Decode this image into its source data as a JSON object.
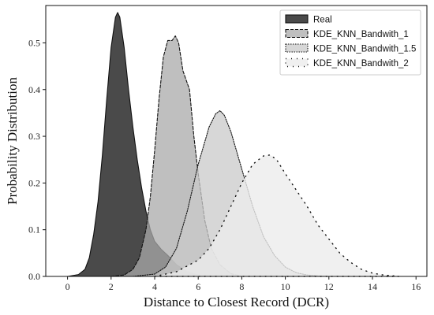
{
  "chart_data": {
    "type": "area",
    "xlabel": "Distance to Closest Record (DCR)",
    "ylabel": "Probability Distribution",
    "xlim": [
      -1.0,
      16.5
    ],
    "ylim": [
      0.0,
      0.58
    ],
    "xticks": [
      0,
      2,
      4,
      6,
      8,
      10,
      12,
      14,
      16
    ],
    "yticks": [
      0.0,
      0.1,
      0.2,
      0.3,
      0.4,
      0.5
    ],
    "grid": false,
    "legend_position": "top-right",
    "series": [
      {
        "name": "Real",
        "fill": "#4a4a4a",
        "fill_opacity": 1.0,
        "stroke": "#111111",
        "dash": "solid",
        "x": [
          0.0,
          0.5,
          0.8,
          1.0,
          1.2,
          1.4,
          1.6,
          1.8,
          2.0,
          2.2,
          2.3,
          2.4,
          2.6,
          2.8,
          3.0,
          3.2,
          3.4,
          3.6,
          3.8,
          4.0,
          4.3,
          4.6,
          5.0,
          5.5,
          6.0,
          6.5
        ],
        "y": [
          0.0,
          0.004,
          0.015,
          0.04,
          0.09,
          0.16,
          0.26,
          0.38,
          0.49,
          0.555,
          0.565,
          0.555,
          0.49,
          0.4,
          0.32,
          0.25,
          0.19,
          0.14,
          0.1,
          0.075,
          0.058,
          0.045,
          0.025,
          0.01,
          0.003,
          0.0
        ]
      },
      {
        "name": "KDE_KNN_Bandwith_1",
        "fill": "#aaaaaa",
        "fill_opacity": 0.75,
        "stroke": "#111111",
        "dash": "4,2",
        "x": [
          2.0,
          2.6,
          3.0,
          3.3,
          3.6,
          3.8,
          4.0,
          4.2,
          4.4,
          4.6,
          4.8,
          4.95,
          5.1,
          5.3,
          5.6,
          5.8,
          6.0,
          6.3,
          6.6,
          7.0,
          7.5,
          8.0
        ],
        "y": [
          0.0,
          0.003,
          0.015,
          0.04,
          0.1,
          0.17,
          0.27,
          0.38,
          0.47,
          0.505,
          0.505,
          0.515,
          0.5,
          0.44,
          0.4,
          0.3,
          0.22,
          0.12,
          0.06,
          0.025,
          0.006,
          0.0
        ]
      },
      {
        "name": "KDE_KNN_Bandwith_1.5",
        "fill": "#c9c9c9",
        "fill_opacity": 0.75,
        "stroke": "#111111",
        "dash": "1.5,1.5",
        "x": [
          3.0,
          4.0,
          4.5,
          5.0,
          5.5,
          6.0,
          6.5,
          6.8,
          7.0,
          7.2,
          7.5,
          8.0,
          8.5,
          9.0,
          9.5,
          10.0,
          10.5,
          11.0,
          11.5,
          12.0
        ],
        "y": [
          0.0,
          0.005,
          0.02,
          0.06,
          0.14,
          0.24,
          0.32,
          0.348,
          0.355,
          0.345,
          0.31,
          0.23,
          0.15,
          0.085,
          0.045,
          0.02,
          0.008,
          0.003,
          0.001,
          0.0
        ]
      },
      {
        "name": "KDE_KNN_Bandwith_2",
        "fill": "#ececec",
        "fill_opacity": 0.8,
        "stroke": "#111111",
        "dash": "1,6",
        "x": [
          4.0,
          5.0,
          6.0,
          6.5,
          7.0,
          7.5,
          8.0,
          8.5,
          9.0,
          9.3,
          9.6,
          10.0,
          10.5,
          11.0,
          11.5,
          12.0,
          12.5,
          13.0,
          13.5,
          14.0,
          14.5,
          15.0,
          15.2
        ],
        "y": [
          0.0,
          0.01,
          0.035,
          0.06,
          0.1,
          0.15,
          0.2,
          0.24,
          0.258,
          0.26,
          0.25,
          0.22,
          0.185,
          0.15,
          0.11,
          0.08,
          0.05,
          0.03,
          0.015,
          0.007,
          0.003,
          0.001,
          0.0
        ]
      }
    ]
  }
}
